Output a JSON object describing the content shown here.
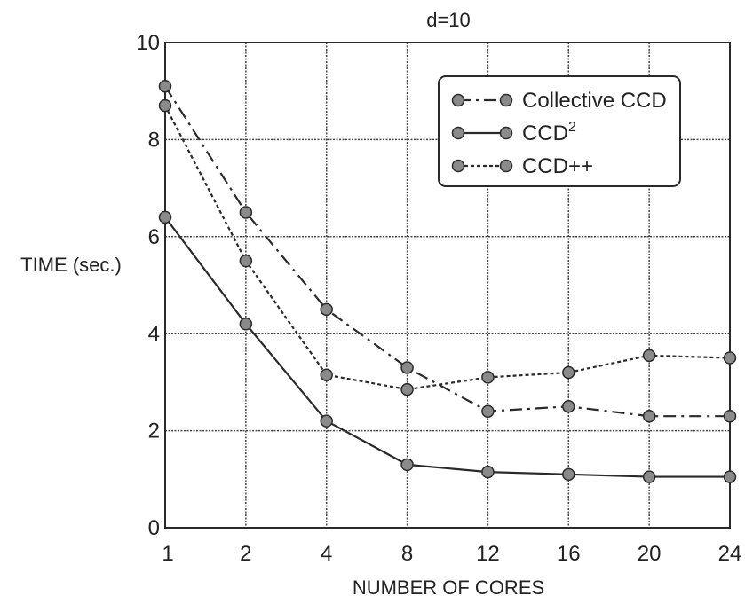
{
  "chart_data": {
    "type": "line",
    "title": "d=10",
    "xlabel": "NUMBER OF CORES",
    "ylabel": "TIME (sec.)",
    "categories": [
      "1",
      "2",
      "4",
      "8",
      "12",
      "16",
      "20",
      "24"
    ],
    "ylim": [
      0,
      10
    ],
    "yticks": [
      "0",
      "2",
      "4",
      "6",
      "8",
      "10"
    ],
    "grid": true,
    "legend_position": "top-right",
    "series": [
      {
        "name": "Collective CCD",
        "style": "dash-dot",
        "values": [
          9.1,
          6.5,
          4.5,
          3.3,
          2.4,
          2.5,
          2.3,
          2.3
        ]
      },
      {
        "name": "CCD2",
        "style": "solid",
        "values": [
          6.4,
          4.2,
          2.2,
          1.3,
          1.15,
          1.1,
          1.05,
          1.05
        ]
      },
      {
        "name": "CCD++",
        "style": "dotted",
        "values": [
          8.7,
          5.5,
          3.15,
          2.85,
          3.1,
          3.2,
          3.55,
          3.5
        ]
      }
    ],
    "colors": {
      "line": "#2a2a2a",
      "marker_fill": "#8a8a8a",
      "grid": "#444444"
    }
  }
}
